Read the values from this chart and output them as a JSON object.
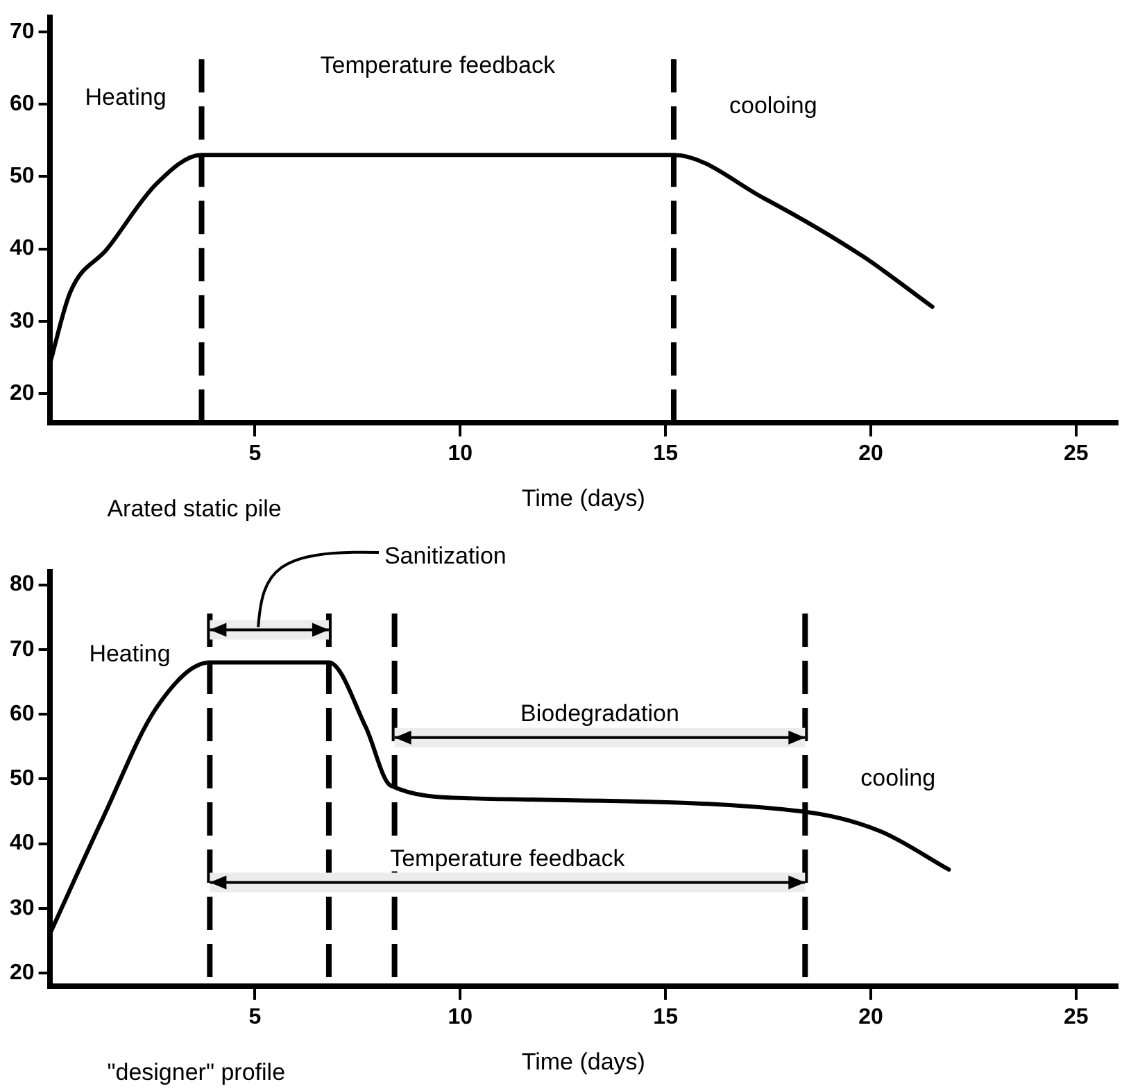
{
  "chart_data": [
    {
      "type": "line",
      "title": "Arated static pile",
      "xlabel": "Time (days)",
      "marker": "none",
      "line_style": "solid",
      "x": [
        0,
        0.5,
        1.4,
        2.6,
        3.7,
        15.2,
        17.4,
        19.8,
        21.5
      ],
      "values": [
        24,
        34,
        40,
        49,
        53,
        53,
        47,
        39,
        32
      ],
      "color": "#000000",
      "xlim": [
        0,
        26
      ],
      "xticks": [
        5,
        10,
        15,
        20,
        25
      ],
      "ylim": [
        16,
        72
      ],
      "yticks": [
        20,
        30,
        40,
        50,
        60,
        70
      ],
      "ref_lines": [
        {
          "axis": "x",
          "value": 3.7,
          "line_style": "dashed"
        },
        {
          "axis": "x",
          "value": 15.2,
          "line_style": "dashed"
        }
      ],
      "annotations": [
        "Heating",
        "Temperature feedback",
        "cooloing"
      ]
    },
    {
      "type": "line",
      "title": "\"designer\" profile",
      "xlabel": "Time (days)",
      "marker": "none",
      "line_style": "solid",
      "x": [
        0,
        1.3,
        2.6,
        3.9,
        6.8,
        7.7,
        8.3,
        10.3,
        18.3,
        20.2,
        21.9
      ],
      "values": [
        26,
        44,
        61,
        68,
        68,
        58,
        49,
        47,
        45,
        42,
        36
      ],
      "color": "#000000",
      "xlim": [
        0,
        26
      ],
      "xticks": [
        5,
        10,
        15,
        20,
        25
      ],
      "ylim": [
        18,
        82
      ],
      "yticks": [
        20,
        30,
        40,
        50,
        60,
        70,
        80
      ],
      "ref_lines": [
        {
          "axis": "x",
          "value": 3.9,
          "line_style": "dashed"
        },
        {
          "axis": "x",
          "value": 6.8,
          "line_style": "dashed"
        },
        {
          "axis": "x",
          "value": 8.4,
          "line_style": "dashed"
        },
        {
          "axis": "x",
          "value": 18.4,
          "line_style": "dashed"
        }
      ],
      "bands": [
        {
          "axis": "x",
          "from": 3.9,
          "to": 6.8,
          "label": "Sanitization"
        },
        {
          "axis": "x",
          "from": 8.4,
          "to": 18.4,
          "label": "Biodegradation"
        },
        {
          "axis": "x",
          "from": 3.9,
          "to": 18.4,
          "label": "Temperature feedback"
        }
      ],
      "annotations": [
        "Heating",
        "cooling"
      ]
    }
  ]
}
